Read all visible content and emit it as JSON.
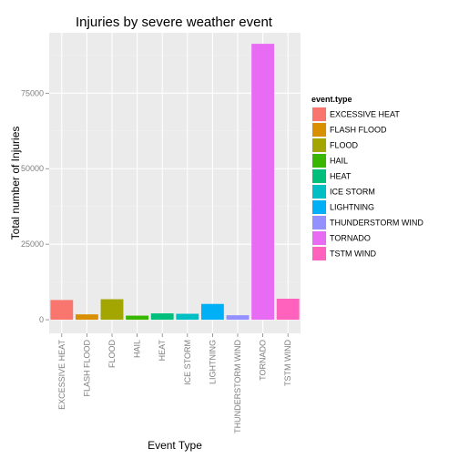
{
  "chart_data": {
    "type": "bar",
    "title": "Injuries by severe weather event",
    "xlabel": "Event Type",
    "ylabel": "Total number of Injuries",
    "ylim": [
      -4500,
      95000
    ],
    "yticks": [
      0,
      25000,
      50000,
      75000
    ],
    "yticklabels": [
      "0",
      "25000",
      "50000",
      "75000"
    ],
    "grid": true,
    "legend_position": "right",
    "legend_title": "event.type",
    "categories": [
      "EXCESSIVE HEAT",
      "FLASH FLOOD",
      "FLOOD",
      "HAIL",
      "HEAT",
      "ICE STORM",
      "LIGHTNING",
      "THUNDERSTORM WIND",
      "TORNADO",
      "TSTM WIND"
    ],
    "values": [
      6525,
      1777,
      6789,
      1361,
      2100,
      1975,
      5230,
      1488,
      91346,
      6957
    ],
    "colors": [
      "#F8766D",
      "#D89000",
      "#A3A500",
      "#39B600",
      "#00BF7D",
      "#00BFC4",
      "#00B0F6",
      "#9590FF",
      "#E76BF3",
      "#FF62BC"
    ]
  }
}
